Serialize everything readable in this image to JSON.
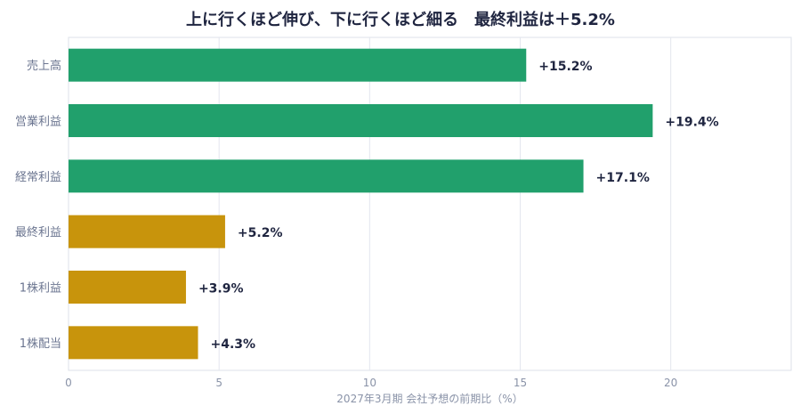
{
  "chart_data": {
    "type": "bar",
    "orientation": "horizontal",
    "title": "上に行くほど伸び、下に行くほど細る　最終利益は＋5.2%",
    "xlabel": "2027年3月期 会社予想の前期比（%）",
    "ylabel": "",
    "xlim": [
      0,
      24
    ],
    "xticks": [
      0,
      5,
      10,
      15,
      20
    ],
    "grid": true,
    "categories": [
      "売上高",
      "営業利益",
      "経常利益",
      "最終利益",
      "1株利益",
      "1株配当"
    ],
    "values": [
      15.2,
      19.4,
      17.1,
      5.2,
      3.9,
      4.3
    ],
    "data_labels": [
      "+15.2%",
      "+19.4%",
      "+17.1%",
      "+5.2%",
      "+3.9%",
      "+4.3%"
    ],
    "colors": [
      "#21a06c",
      "#21a06c",
      "#21a06c",
      "#c8940c",
      "#c8940c",
      "#c8940c"
    ]
  }
}
